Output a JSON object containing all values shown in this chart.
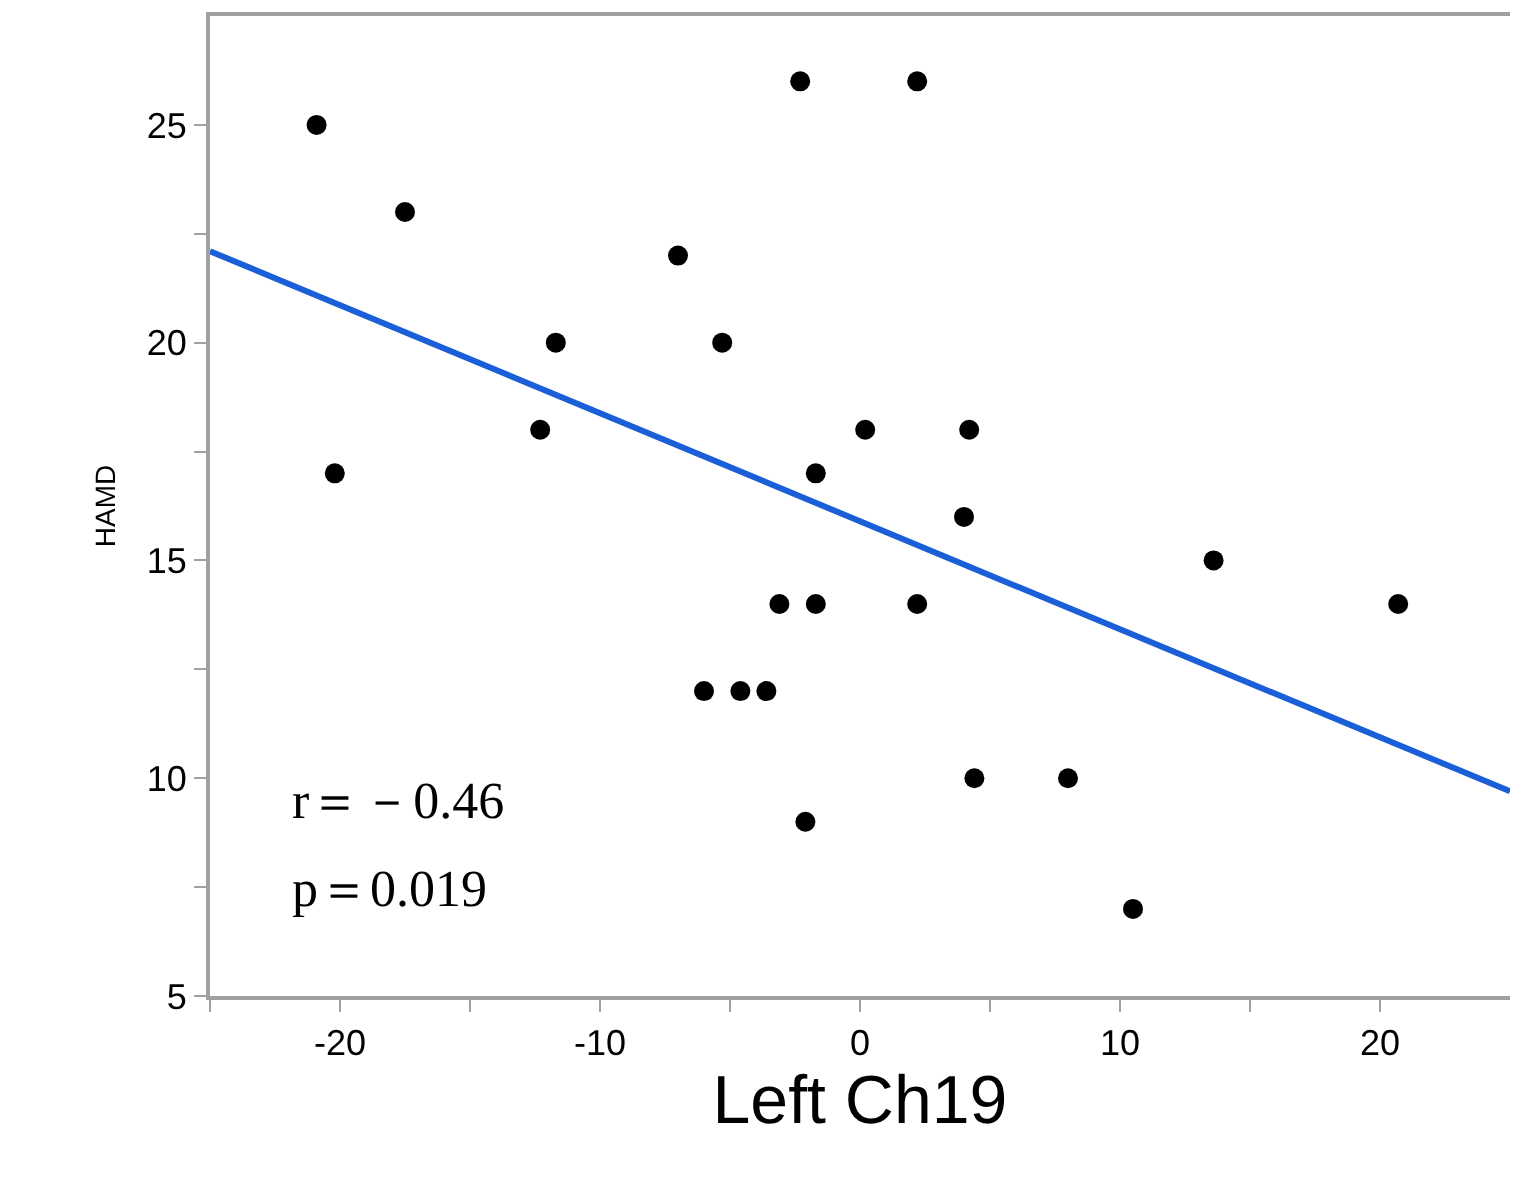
{
  "chart_data": {
    "type": "scatter",
    "xlabel": "Left Ch19",
    "ylabel": "HAMD",
    "xlim": [
      -25,
      25
    ],
    "ylim": [
      5,
      27.5
    ],
    "xticks": [
      {
        "value": -25,
        "label": null
      },
      -20,
      {
        "value": -15,
        "label": null
      },
      -10,
      {
        "value": -5,
        "label": null
      },
      0,
      {
        "value": 5,
        "label": null
      },
      10,
      {
        "value": 15,
        "label": null
      },
      20
    ],
    "yticks": [
      5,
      {
        "value": 7.5,
        "label": null
      },
      10,
      {
        "value": 12.5,
        "label": null
      },
      15,
      {
        "value": 17.5,
        "label": null
      },
      20,
      {
        "value": 22.5,
        "label": null
      },
      25
    ],
    "tick_labels": "xy",
    "annotations": [
      "r＝－0.46",
      "p＝0.019"
    ],
    "series": [
      {
        "marker": "circle",
        "color": "#000000",
        "x": [
          -20.9,
          -20.2,
          -17.5,
          -12.3,
          -11.7,
          -7.0,
          -6.0,
          -5.3,
          -4.6,
          -3.6,
          -3.1,
          -2.3,
          -2.1,
          -1.7,
          -1.7,
          0.2,
          2.2,
          2.2,
          4.0,
          4.2,
          4.4,
          8.0,
          10.5,
          13.6,
          20.7
        ],
        "values": [
          25,
          17,
          23,
          18,
          20,
          22,
          12,
          20,
          12,
          12,
          14,
          26,
          9,
          17,
          14,
          18,
          26,
          14,
          16,
          18,
          10,
          10,
          7,
          15,
          14
        ]
      },
      {
        "type": "line",
        "marker": "none",
        "color": "#1a5fd8",
        "line_style": "solid",
        "x": [
          -25,
          25
        ],
        "values": [
          22.1,
          9.7
        ]
      }
    ]
  }
}
